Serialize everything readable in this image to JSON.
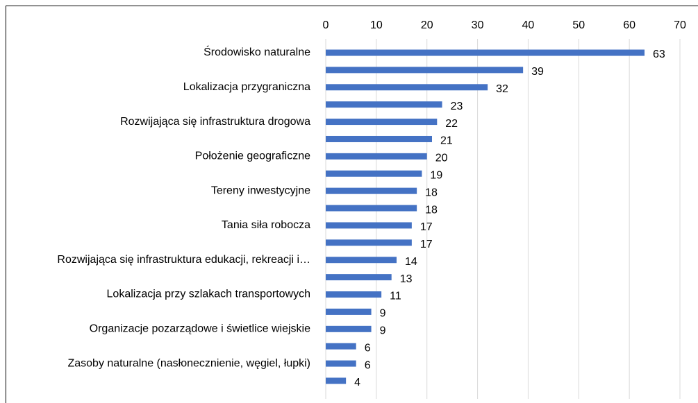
{
  "chart_data": {
    "type": "bar",
    "orientation": "horizontal",
    "categories": [
      "Środowisko naturalne",
      null,
      "Lokalizacja przygraniczna",
      null,
      "Rozwijająca się infrastruktura drogowa",
      null,
      "Położenie geograficzne",
      null,
      "Tereny inwestycyjne",
      null,
      "Tania siła robocza",
      null,
      "Rozwijająca się infrastruktura edukacji, rekreacji i…",
      null,
      "Lokalizacja przy szlakach transportowych",
      null,
      "Organizacje pozarządowe i świetlice wiejskie",
      null,
      "Zasoby naturalne (nasłonecznienie, węgiel, łupki)",
      null
    ],
    "values": [
      63,
      39,
      32,
      23,
      22,
      21,
      20,
      19,
      18,
      18,
      17,
      17,
      14,
      13,
      11,
      9,
      9,
      6,
      6,
      4
    ],
    "color": "#4472c4",
    "xlim": [
      0,
      70
    ],
    "xticks": [
      0,
      10,
      20,
      30,
      40,
      50,
      60,
      70
    ],
    "grid": true
  }
}
